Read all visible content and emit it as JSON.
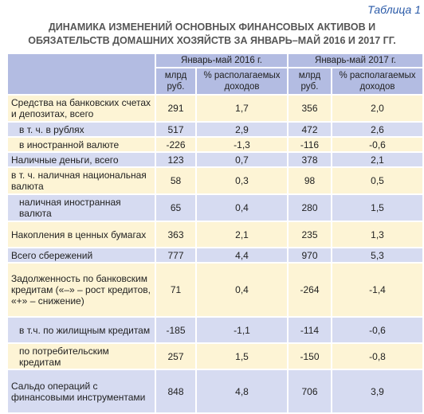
{
  "caption": "Таблица 1",
  "title": [
    "ДИНАМИКА ИЗМЕНЕНИЙ ОСНОВНЫХ ФИНАНСОВЫХ АКТИВОВ И",
    "ОБЯЗАТЕЛЬСТВ ДОМАШНИХ ХОЗЯЙСТВ ЗА ЯНВАРЬ–МАЙ 2016 И 2017 ГГ."
  ],
  "table": {
    "header": {
      "periods": [
        "Январь-май 2016 г.",
        "Январь-май 2017 г."
      ],
      "units": [
        "млрд руб.",
        "% располагаемых доходов",
        "млрд руб.",
        "% располагаемых доходов"
      ]
    },
    "rows": [
      [
        "Средства на банковских счетах и депозитах, всего",
        "291",
        "1,7",
        "356",
        "2,0"
      ],
      [
        "в т. ч. в рублях",
        "517",
        "2,9",
        "472",
        "2,6"
      ],
      [
        "в иностранной валюте",
        "-226",
        "-1,3",
        "-116",
        "-0,6"
      ],
      [
        "Наличные деньги, всего",
        "123",
        "0,7",
        "378",
        "2,1"
      ],
      [
        "в т. ч. наличная национальная валюта",
        "58",
        "0,3",
        "98",
        "0,5"
      ],
      [
        "наличная иностранная валюта",
        "65",
        "0,4",
        "280",
        "1,5"
      ],
      [
        "Накопления в ценных бумагах",
        "363",
        "2,1",
        "235",
        "1,3"
      ],
      [
        "Всего сбережений",
        "777",
        "4,4",
        "970",
        "5,3"
      ],
      [
        "Задолженность по банковским кредитам («–» – рост кредитов, «+» – снижение)",
        "71",
        "0,4",
        "-264",
        "-1,4"
      ],
      [
        "в т.ч. по жилищным кредитам",
        "-185",
        "-1,1",
        "-114",
        "-0,6"
      ],
      [
        "по потребительским кредитам",
        "257",
        "1,5",
        "-150",
        "-0,8"
      ],
      [
        "Сальдо операций с финансовыми инструментами",
        "848",
        "4,8",
        "706",
        "3,9"
      ]
    ]
  }
}
